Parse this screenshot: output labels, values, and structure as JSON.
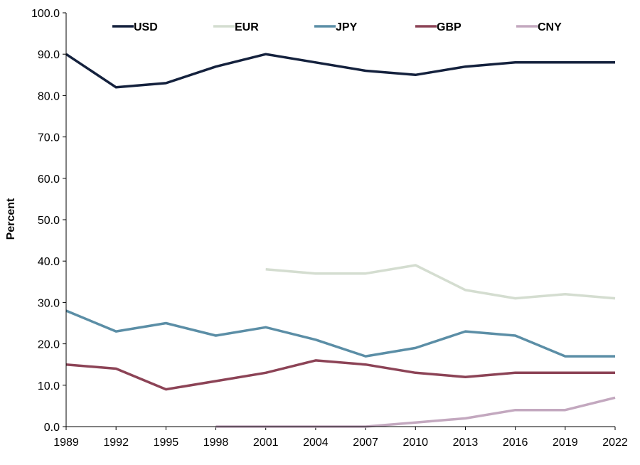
{
  "chart_data": {
    "type": "line",
    "title": "",
    "xlabel": "",
    "ylabel": "Percent",
    "x": [
      1989,
      1992,
      1995,
      1998,
      2001,
      2004,
      2007,
      2010,
      2013,
      2016,
      2019,
      2022
    ],
    "x_tick_labels": [
      "1989",
      "1992",
      "1995",
      "1998",
      "2001",
      "2004",
      "2007",
      "2010",
      "2013",
      "2016",
      "2019",
      "2022"
    ],
    "ylim": [
      0,
      100
    ],
    "y_ticks": [
      0,
      10,
      20,
      30,
      40,
      50,
      60,
      70,
      80,
      90,
      100
    ],
    "y_tick_labels": [
      "0.0",
      "10.0",
      "20.0",
      "30.0",
      "40.0",
      "50.0",
      "60.0",
      "70.0",
      "80.0",
      "90.0",
      "100.0"
    ],
    "grid": false,
    "legend_position": "top",
    "series": [
      {
        "name": "USD",
        "color": "#14213d",
        "values": [
          90,
          82,
          83,
          87,
          90,
          88,
          86,
          85,
          87,
          88,
          88,
          88
        ]
      },
      {
        "name": "EUR",
        "color": "#d4ddd0",
        "values": [
          null,
          null,
          null,
          null,
          38,
          37,
          37,
          39,
          33,
          31,
          32,
          31
        ]
      },
      {
        "name": "JPY",
        "color": "#5b8ea6",
        "values": [
          28,
          23,
          25,
          22,
          24,
          21,
          17,
          19,
          23,
          22,
          17,
          17
        ]
      },
      {
        "name": "GBP",
        "color": "#8c4356",
        "values": [
          15,
          14,
          9,
          11,
          13,
          16,
          15,
          13,
          12,
          13,
          13,
          13
        ]
      },
      {
        "name": "CNY",
        "color": "#c3a8bf",
        "values": [
          null,
          null,
          null,
          0,
          0,
          0,
          0,
          1,
          2,
          4,
          4,
          7
        ]
      }
    ]
  }
}
